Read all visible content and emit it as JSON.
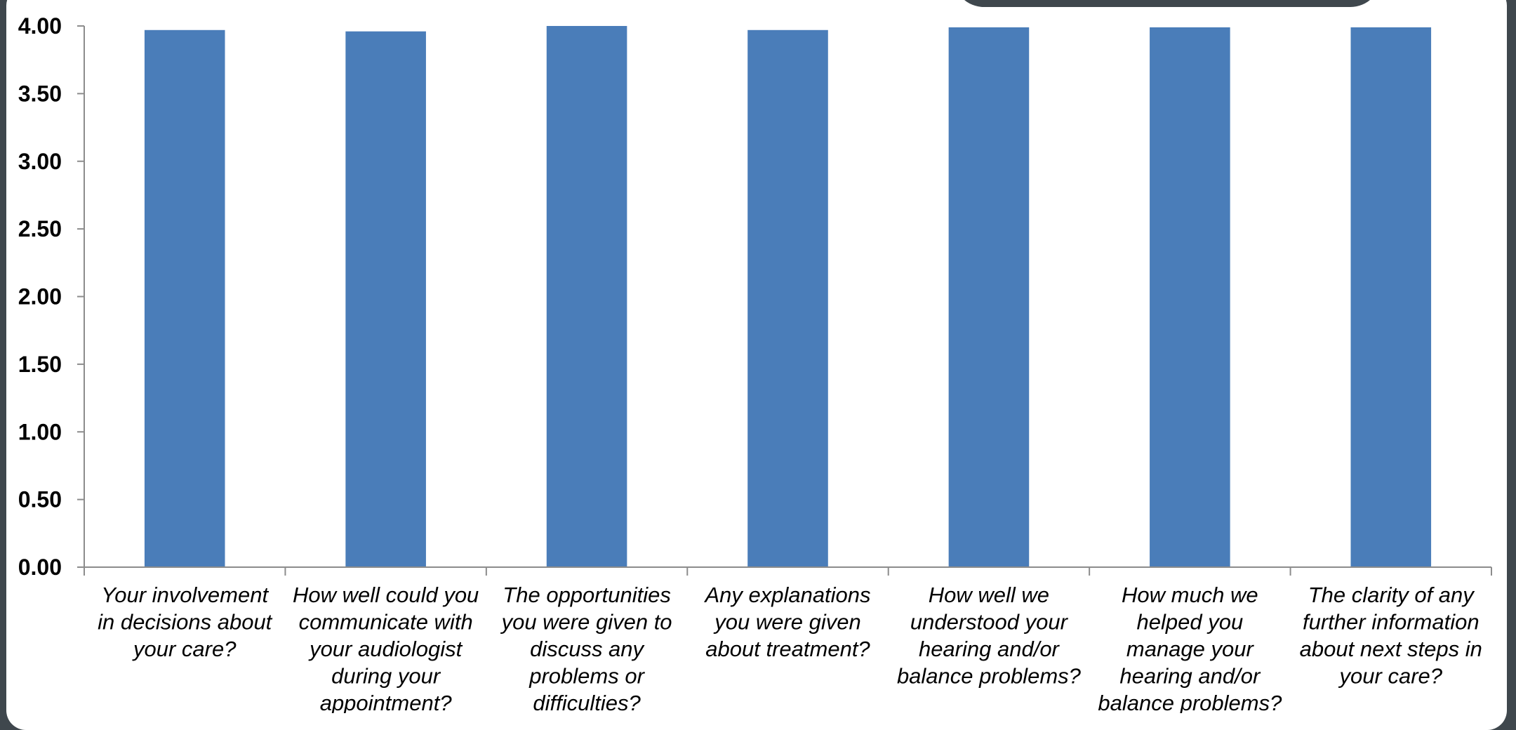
{
  "chart_data": {
    "type": "bar",
    "title": "",
    "xlabel": "",
    "ylabel": "",
    "ylim": [
      0,
      4
    ],
    "yticks": [
      "0.00",
      "0.50",
      "1.00",
      "1.50",
      "2.00",
      "2.50",
      "3.00",
      "3.50",
      "4.00"
    ],
    "grid": false,
    "legend": "none",
    "bar_color": "#4a7db9",
    "categories": [
      "Your involvement in decisions about your care?",
      "How well could you communicate with your audiologist during your appointment?",
      "The opportunities you were given to discuss any problems or difficulties?",
      "Any explanations you were given about treatment?",
      "How well we understood your hearing and/or balance problems?",
      "How much we helped you manage your hearing and/or balance problems?",
      "The clarity of any further information about next steps in your care?"
    ],
    "category_lines": [
      [
        "Your involvement",
        "in decisions about",
        "your care?"
      ],
      [
        "How well could you",
        "communicate with",
        "your audiologist",
        "during your",
        "appointment?"
      ],
      [
        "The opportunities",
        "you were given to",
        "discuss any",
        "problems or",
        "difficulties?"
      ],
      [
        "Any explanations",
        "you were given",
        "about treatment?"
      ],
      [
        "How well we",
        "understood your",
        "hearing and/or",
        "balance problems?"
      ],
      [
        "How much we",
        "helped you",
        "manage your",
        "hearing and/or",
        "balance problems?"
      ],
      [
        "The clarity of any",
        "further information",
        "about next steps in",
        "your care?"
      ]
    ],
    "values": [
      3.97,
      3.96,
      4.0,
      3.97,
      3.99,
      3.99,
      3.99
    ]
  }
}
